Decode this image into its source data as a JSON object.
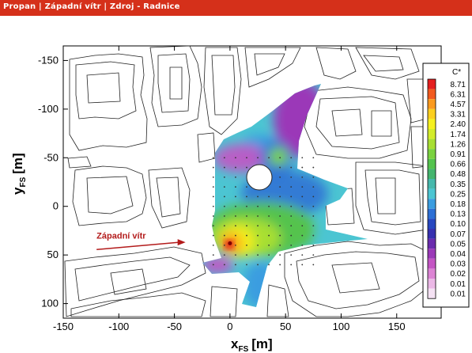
{
  "window": {
    "title": "Propan | Západní vítr | Zdroj - Radnice"
  },
  "chart_data": {
    "type": "heatmap",
    "title": "",
    "xlabel": {
      "main": "x",
      "sub": "FS",
      "unit": "[m]"
    },
    "ylabel": {
      "main": "y",
      "sub": "FS",
      "unit": "[m]"
    },
    "xlim": [
      -150,
      190
    ],
    "ylim": [
      -165,
      115
    ],
    "y_inverted": true,
    "grid": false,
    "x_ticks": [
      -150,
      -100,
      -50,
      0,
      50,
      100,
      150
    ],
    "y_ticks": [
      -150,
      -100,
      -50,
      0,
      50,
      100
    ],
    "legend": {
      "title": "C*",
      "position": "right",
      "levels": [
        "8.71",
        "6.31",
        "4.57",
        "3.31",
        "2.40",
        "1.74",
        "1.26",
        "0.91",
        "0.66",
        "0.48",
        "0.35",
        "0.25",
        "0.18",
        "0.13",
        "0.10",
        "0.07",
        "0.05",
        "0.04",
        "0.03",
        "0.02",
        "0.01",
        "0.01"
      ],
      "colors": [
        "#e41f1f",
        "#f25a1e",
        "#fb9a1e",
        "#fbcf1f",
        "#f5f01f",
        "#d3ec2a",
        "#a8df33",
        "#7ad23f",
        "#54c34e",
        "#44b56e",
        "#46b8ac",
        "#4cc5d2",
        "#3b9de0",
        "#2d6fd5",
        "#2747c0",
        "#3731b0",
        "#6a2cae",
        "#9b39b8",
        "#c455c4",
        "#dc84d4",
        "#ebb8e6",
        "#f5e2f4"
      ]
    },
    "annotation": {
      "text": "Západní vítr",
      "x": -120,
      "y": 33,
      "arrow_to": [
        -40,
        37
      ]
    },
    "source_point": {
      "x": 0,
      "y": 38
    }
  }
}
